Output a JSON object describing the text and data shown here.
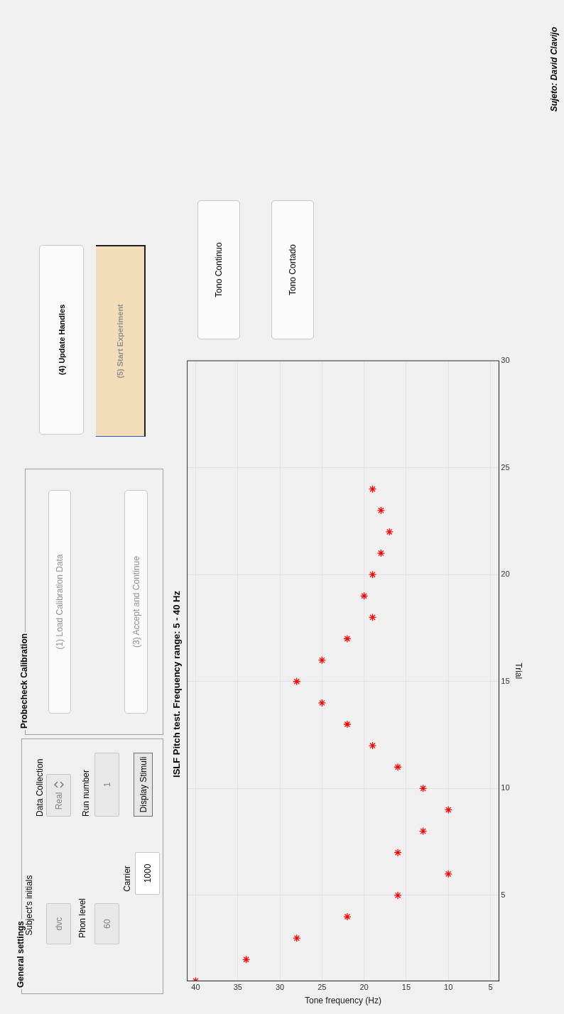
{
  "chart_data": {
    "type": "scatter",
    "title": "ISLF Pitch test. Frequency range: 5 - 40 Hz",
    "xlabel": "Tone frequency (Hz)",
    "ylabel": "Trial",
    "x": [
      40,
      34,
      28,
      22,
      16,
      10,
      16,
      13,
      10,
      13,
      16,
      19,
      22,
      25,
      28,
      25,
      22,
      19,
      20,
      19,
      18,
      17,
      18,
      19
    ],
    "values": [
      1,
      2,
      3,
      4,
      5,
      6,
      7,
      8,
      9,
      10,
      11,
      12,
      13,
      14,
      15,
      16,
      17,
      18,
      19,
      20,
      21,
      22,
      23,
      24
    ],
    "color": "#ff0000",
    "marker": "cross",
    "grid": true,
    "legend": false,
    "xlim": [
      41,
      4
    ],
    "xticks": [
      40,
      35,
      30,
      25,
      20,
      15,
      10,
      5
    ],
    "ylim": [
      1,
      30
    ],
    "yticks": [
      5,
      10,
      15,
      20,
      25,
      30
    ],
    "annotations": [
      "General settings",
      "Subject's initials",
      "dvc",
      "Phon level",
      "60",
      "Carrier",
      "1000",
      "Data Collection",
      "Real",
      "Run number",
      "1",
      "Display Stimuli",
      "Probecheck Calibration",
      "(1) Load Calibration Data",
      "(3) Accept and Continue",
      "(4) Update Handles",
      "(5) Start Experiment",
      "Tono Continuo",
      "Tono Cortado",
      "Sujeto: David Clavijo"
    ]
  }
}
